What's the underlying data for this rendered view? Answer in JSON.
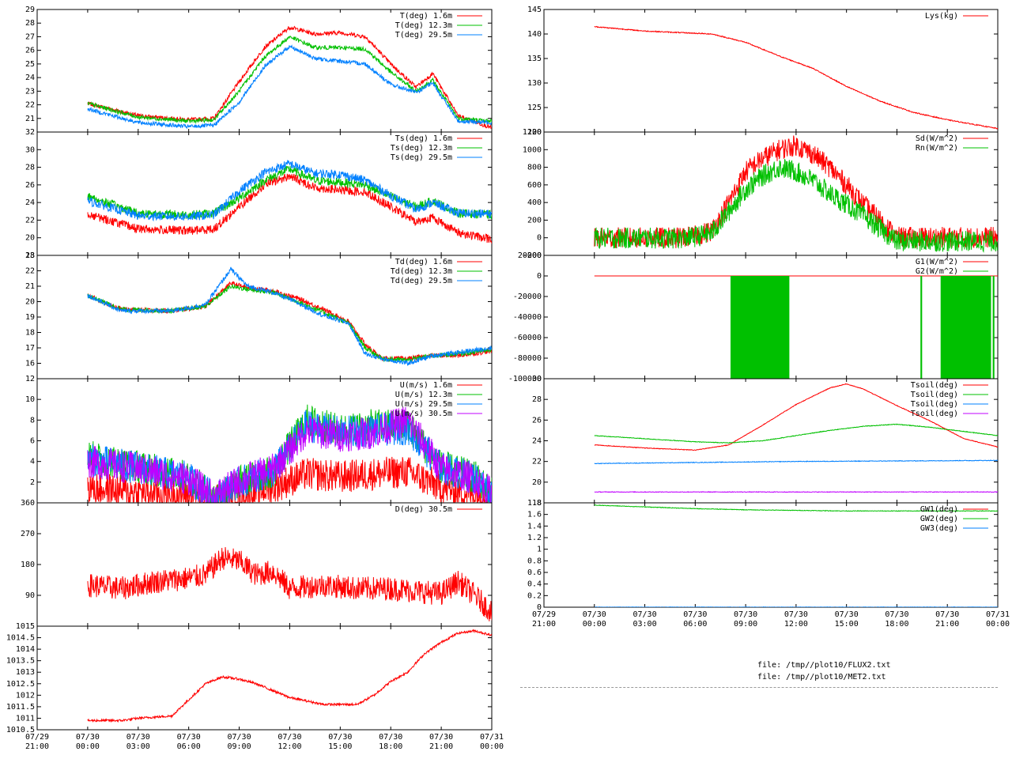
{
  "colors": {
    "red": "#ff0000",
    "green": "#00c000",
    "blue": "#0080ff",
    "purple": "#c000ff",
    "axis": "#000000"
  },
  "time_axis": {
    "left_ticks": [
      {
        "day": "07/29",
        "time": "21:00"
      },
      {
        "day": "07/30",
        "time": "00:00"
      },
      {
        "day": "07/30",
        "time": "03:00"
      },
      {
        "day": "07/30",
        "time": "06:00"
      },
      {
        "day": "07/30",
        "time": "09:00"
      },
      {
        "day": "07/30",
        "time": "12:00"
      },
      {
        "day": "07/30",
        "time": "15:00"
      },
      {
        "day": "07/30",
        "time": "18:00"
      },
      {
        "day": "07/30",
        "time": "21:00"
      },
      {
        "day": "07/31",
        "time": "00:00"
      }
    ],
    "right_ticks": [
      {
        "day": "07/29",
        "time": "21:00"
      },
      {
        "day": "07/30",
        "time": "00:00"
      },
      {
        "day": "07/30",
        "time": "03:00"
      },
      {
        "day": "07/30",
        "time": "06:00"
      },
      {
        "day": "07/30",
        "time": "09:00"
      },
      {
        "day": "07/30",
        "time": "12:00"
      },
      {
        "day": "07/30",
        "time": "15:00"
      },
      {
        "day": "07/30",
        "time": "18:00"
      },
      {
        "day": "07/30",
        "time": "21:00"
      },
      {
        "day": "07/31",
        "time": "00:00"
      }
    ]
  },
  "footer": {
    "file1": "file: /tmp//plot10/FLUX2.txt",
    "file2": "file: /tmp//plot10/MET2.txt"
  },
  "chart_data": [
    {
      "type": "line",
      "ylim": [
        20,
        29
      ],
      "yticks": [
        "21",
        "22",
        "23",
        "24",
        "25",
        "26",
        "27",
        "28",
        "29"
      ],
      "series": [
        {
          "name": "T(deg)  1.6m",
          "color": "#ff0000",
          "x": [
            0,
            3,
            6,
            7.5,
            9,
            10.5,
            12,
            13.5,
            15,
            16.5,
            18,
            19.5,
            20.5,
            22,
            24
          ],
          "y": [
            22.1,
            21.2,
            20.9,
            21.0,
            23.7,
            26.2,
            27.7,
            27.2,
            27.3,
            27.0,
            25.0,
            23.3,
            24.3,
            21.2,
            20.3
          ]
        },
        {
          "name": "T(deg) 12.3m",
          "color": "#00c000",
          "x": [
            0,
            3,
            6,
            7.5,
            9,
            10.5,
            12,
            13.5,
            15,
            16.5,
            18,
            19.5,
            20.5,
            22,
            24
          ],
          "y": [
            22.1,
            21.1,
            20.8,
            20.9,
            23.0,
            25.5,
            27.0,
            26.2,
            26.2,
            26.1,
            24.4,
            23.0,
            23.8,
            21.0,
            20.8
          ]
        },
        {
          "name": "T(deg) 29.5m",
          "color": "#0080ff",
          "x": [
            0,
            3,
            6,
            7.5,
            9,
            10.5,
            12,
            13.5,
            15,
            16.5,
            18,
            19.5,
            20.5,
            22,
            24
          ],
          "y": [
            21.7,
            20.7,
            20.4,
            20.5,
            22.2,
            24.8,
            26.3,
            25.4,
            25.2,
            25.0,
            23.5,
            22.9,
            23.6,
            20.8,
            20.7
          ]
        }
      ]
    },
    {
      "type": "line",
      "ylim": [
        18,
        32
      ],
      "yticks": [
        "18",
        "20",
        "22",
        "24",
        "26",
        "28",
        "30",
        "32"
      ],
      "series": [
        {
          "name": "Ts(deg)  1.6m",
          "color": "#ff0000",
          "x": [
            0,
            3,
            6,
            7.5,
            9,
            10.5,
            12,
            13.5,
            15,
            16.5,
            18,
            19.5,
            20.5,
            22,
            24
          ],
          "y": [
            22.7,
            21.0,
            20.8,
            21.0,
            23.5,
            26.0,
            27.0,
            25.7,
            25.4,
            25.2,
            23.5,
            21.8,
            22.3,
            20.6,
            19.8
          ]
        },
        {
          "name": "Ts(deg) 12.3m",
          "color": "#00c000",
          "x": [
            0,
            3,
            6,
            7.5,
            9,
            10.5,
            12,
            13.5,
            15,
            16.5,
            18,
            19.5,
            20.5,
            22,
            24
          ],
          "y": [
            24.7,
            22.8,
            22.6,
            22.8,
            24.5,
            26.5,
            27.8,
            26.5,
            26.3,
            26.0,
            24.7,
            23.5,
            24.2,
            22.8,
            22.6
          ]
        },
        {
          "name": "Ts(deg) 29.5m",
          "color": "#0080ff",
          "x": [
            0,
            3,
            6,
            7.5,
            9,
            10.5,
            12,
            13.5,
            15,
            16.5,
            18,
            19.5,
            20.5,
            22,
            24
          ],
          "y": [
            24.2,
            22.5,
            22.4,
            22.6,
            25.3,
            27.4,
            28.4,
            27.3,
            27.2,
            26.5,
            24.8,
            23.2,
            24.0,
            22.8,
            22.7
          ]
        }
      ]
    },
    {
      "type": "line",
      "ylim": [
        15,
        23
      ],
      "yticks": [
        "16",
        "17",
        "18",
        "19",
        "20",
        "21",
        "22",
        "23"
      ],
      "series": [
        {
          "name": "Td(deg)  1.6m",
          "color": "#ff0000",
          "x": [
            0,
            2,
            5,
            7,
            8.5,
            9.5,
            11,
            12.5,
            14,
            15.5,
            16.5,
            17.5,
            19,
            20.5,
            22,
            24
          ],
          "y": [
            20.4,
            19.5,
            19.4,
            19.7,
            21.2,
            20.9,
            20.7,
            20.2,
            19.5,
            18.7,
            17.2,
            16.3,
            16.3,
            16.5,
            16.5,
            16.8
          ]
        },
        {
          "name": "Td(deg) 12.3m",
          "color": "#00c000",
          "x": [
            0,
            2,
            5,
            7,
            8.5,
            9.5,
            11,
            12.5,
            14,
            15.5,
            16.5,
            17.5,
            19,
            20.5,
            22,
            24
          ],
          "y": [
            20.4,
            19.5,
            19.4,
            19.7,
            21.0,
            20.8,
            20.6,
            20.0,
            19.3,
            18.6,
            17.0,
            16.3,
            16.2,
            16.5,
            16.6,
            16.9
          ]
        },
        {
          "name": "Td(deg) 29.5m",
          "color": "#0080ff",
          "x": [
            0,
            2,
            5,
            7,
            8.5,
            9.5,
            11,
            12.5,
            14,
            15.5,
            16.5,
            17.5,
            19,
            20.5,
            22,
            24
          ],
          "y": [
            20.4,
            19.4,
            19.4,
            19.8,
            22.1,
            21.0,
            20.6,
            19.9,
            19.1,
            18.6,
            16.6,
            16.3,
            16.0,
            16.5,
            16.7,
            17.0
          ]
        }
      ]
    },
    {
      "type": "line",
      "ylim": [
        0,
        12
      ],
      "yticks": [
        "2",
        "4",
        "6",
        "8",
        "10",
        "12"
      ],
      "series": [
        {
          "name": "U(m/s)  1.6m",
          "color": "#ff0000",
          "x": [
            0,
            3,
            6,
            7.5,
            9,
            11,
            13,
            15,
            17,
            19,
            21,
            23,
            24
          ],
          "y": [
            1.5,
            1.0,
            0.8,
            0.2,
            0.8,
            1.5,
            2.8,
            2.5,
            2.8,
            3.0,
            1.5,
            0.8,
            0.6
          ]
        },
        {
          "name": "U(m/s) 12.3m",
          "color": "#00c000",
          "x": [
            0,
            3,
            6,
            7.5,
            9,
            11,
            13,
            15,
            17,
            19,
            21,
            23,
            24
          ],
          "y": [
            4.5,
            3.5,
            2.5,
            0.5,
            2.0,
            3.0,
            8.0,
            7.0,
            7.5,
            7.5,
            3.5,
            2.5,
            1.0
          ]
        },
        {
          "name": "U(m/s) 29.5m",
          "color": "#0080ff",
          "x": [
            0,
            3,
            6,
            7.5,
            9,
            11,
            13,
            15,
            17,
            19,
            21,
            23,
            24
          ],
          "y": [
            4.2,
            3.4,
            2.4,
            0.5,
            2.0,
            3.0,
            7.5,
            6.8,
            7.0,
            7.2,
            3.4,
            2.4,
            1.0
          ]
        },
        {
          "name": "U(m/s) 30.5m",
          "color": "#c000ff",
          "x": [
            0,
            3,
            6,
            7.5,
            9,
            11,
            13,
            15,
            17,
            19,
            21,
            23,
            24
          ],
          "y": [
            4.0,
            3.3,
            2.3,
            0.5,
            2.1,
            3.2,
            7.0,
            6.5,
            6.8,
            8.0,
            3.3,
            2.3,
            0.9
          ]
        }
      ]
    },
    {
      "type": "line",
      "ylim": [
        0,
        360
      ],
      "yticks": [
        "90",
        "180",
        "270",
        "360"
      ],
      "series": [
        {
          "name": "D(deg)  30.5m",
          "color": "#ff0000",
          "x": [
            0,
            2,
            4,
            6,
            7,
            8,
            9,
            10,
            11,
            12,
            14,
            16,
            18,
            20,
            21,
            22,
            23,
            24
          ],
          "y": [
            120,
            110,
            130,
            140,
            150,
            200,
            190,
            150,
            160,
            110,
            120,
            110,
            110,
            100,
            95,
            130,
            90,
            40
          ]
        }
      ]
    },
    {
      "type": "line",
      "ylim": [
        1010.5,
        1015
      ],
      "yticks": [
        "1010.5",
        "1011",
        "1011.5",
        "1012",
        "1012.5",
        "1013",
        "1013.5",
        "1014",
        "1014.5",
        "1015"
      ],
      "series": [
        {
          "name": "",
          "color": "#ff0000",
          "x": [
            0,
            2,
            3,
            5,
            6,
            7,
            8,
            9,
            10,
            11,
            12,
            14,
            16,
            17,
            18,
            19,
            20,
            21,
            22,
            23,
            24
          ],
          "y": [
            1010.9,
            1010.9,
            1011.0,
            1011.1,
            1011.8,
            1012.5,
            1012.8,
            1012.7,
            1012.5,
            1012.2,
            1011.9,
            1011.6,
            1011.6,
            1012.0,
            1012.6,
            1013.0,
            1013.8,
            1014.3,
            1014.7,
            1014.8,
            1014.6
          ]
        }
      ]
    },
    {
      "type": "line",
      "ylim": [
        120,
        145
      ],
      "yticks": [
        "120",
        "125",
        "130",
        "135",
        "140",
        "145"
      ],
      "series": [
        {
          "name": "Lys(kg)",
          "color": "#ff0000",
          "x": [
            0,
            3,
            5,
            7,
            9,
            11,
            13,
            15,
            17,
            19,
            21,
            24
          ],
          "y": [
            141.5,
            140.6,
            140.3,
            140.0,
            138.3,
            135.5,
            133.0,
            129.3,
            126.3,
            124.0,
            122.5,
            120.7
          ]
        }
      ]
    },
    {
      "type": "line",
      "ylim": [
        -200,
        1200
      ],
      "yticks": [
        "-200",
        "0",
        "200",
        "400",
        "600",
        "800",
        "1000",
        "1200"
      ],
      "series": [
        {
          "name": "Sd(W/m^2)",
          "color": "#ff0000",
          "x": [
            0,
            5,
            6,
            7,
            8,
            9,
            10,
            11,
            12,
            13,
            14,
            15,
            16,
            17,
            18,
            24
          ],
          "y": [
            0,
            0,
            20,
            80,
            400,
            750,
            900,
            1000,
            1050,
            950,
            800,
            600,
            380,
            200,
            5,
            5
          ]
        },
        {
          "name": "Rn(W/m^2)",
          "color": "#00c000",
          "x": [
            0,
            5,
            6,
            7,
            8,
            9,
            10,
            11,
            12,
            13,
            14,
            15,
            16,
            17,
            18,
            24
          ],
          "y": [
            -5,
            -5,
            10,
            60,
            300,
            550,
            700,
            800,
            750,
            650,
            500,
            380,
            250,
            100,
            -40,
            -40
          ]
        }
      ]
    },
    {
      "type": "bar",
      "ylim": [
        -100000,
        20000
      ],
      "yticks": [
        "-100000",
        "-80000",
        "-60000",
        "-40000",
        "-20000",
        "0",
        "20000"
      ],
      "series": [
        {
          "name": "G1(W/m^2)",
          "color": "#ff0000",
          "x": [
            0,
            24
          ],
          "y": [
            0,
            0
          ]
        },
        {
          "name": "G2(W/m^2)",
          "color": "#00c000",
          "x": [
            [
              8.1,
              11.6
            ],
            [
              19.4,
              19.5
            ],
            [
              20.6,
              23.6
            ],
            [
              23.7,
              23.8
            ]
          ],
          "y": [
            -100000,
            -100000,
            -100000,
            -100000
          ]
        }
      ]
    },
    {
      "type": "line",
      "ylim": [
        18,
        30
      ],
      "yticks": [
        "18",
        "20",
        "22",
        "24",
        "26",
        "28",
        "30"
      ],
      "series": [
        {
          "name": "Tsoil(deg)",
          "color": "#ff0000",
          "x": [
            0,
            3,
            6,
            8,
            10,
            12,
            14,
            15,
            16,
            18,
            20,
            22,
            24
          ],
          "y": [
            23.6,
            23.3,
            23.1,
            23.6,
            25.5,
            27.5,
            29.1,
            29.5,
            29.0,
            27.4,
            25.9,
            24.2,
            23.4
          ]
        },
        {
          "name": "Tsoil(deg)",
          "color": "#00c000",
          "x": [
            0,
            3,
            6,
            8,
            10,
            12,
            14,
            16,
            18,
            20,
            22,
            24
          ],
          "y": [
            24.5,
            24.2,
            23.9,
            23.8,
            24.0,
            24.5,
            25.0,
            25.4,
            25.6,
            25.3,
            24.9,
            24.5
          ]
        },
        {
          "name": "Tsoil(deg)",
          "color": "#0080ff",
          "x": [
            0,
            6,
            12,
            18,
            24
          ],
          "y": [
            21.8,
            21.9,
            22.0,
            22.05,
            22.1
          ]
        },
        {
          "name": "Tsoil(deg)",
          "color": "#c000ff",
          "x": [
            0,
            6,
            12,
            18,
            24
          ],
          "y": [
            19.05,
            19.05,
            19.05,
            19.05,
            19.05
          ]
        }
      ]
    },
    {
      "type": "line",
      "ylim": [
        0,
        1.8
      ],
      "yticks": [
        "0",
        "0.2",
        "0.4",
        "0.6",
        "0.8",
        "1",
        "1.2",
        "1.4",
        "1.6",
        "1.8"
      ],
      "series": [
        {
          "name": "GW1(deg)",
          "color": "#ff0000",
          "x": [
            0,
            24
          ],
          "y": [
            -0.02,
            -0.02
          ]
        },
        {
          "name": "GW2(deg)",
          "color": "#00c000",
          "x": [
            0,
            3,
            6,
            9,
            12,
            15,
            18,
            21,
            24
          ],
          "y": [
            1.76,
            1.73,
            1.7,
            1.68,
            1.67,
            1.66,
            1.66,
            1.66,
            1.66
          ]
        },
        {
          "name": "GW3(deg)",
          "color": "#0080ff",
          "x": [
            0,
            24
          ],
          "y": [
            0.0,
            0.0
          ]
        }
      ]
    }
  ]
}
